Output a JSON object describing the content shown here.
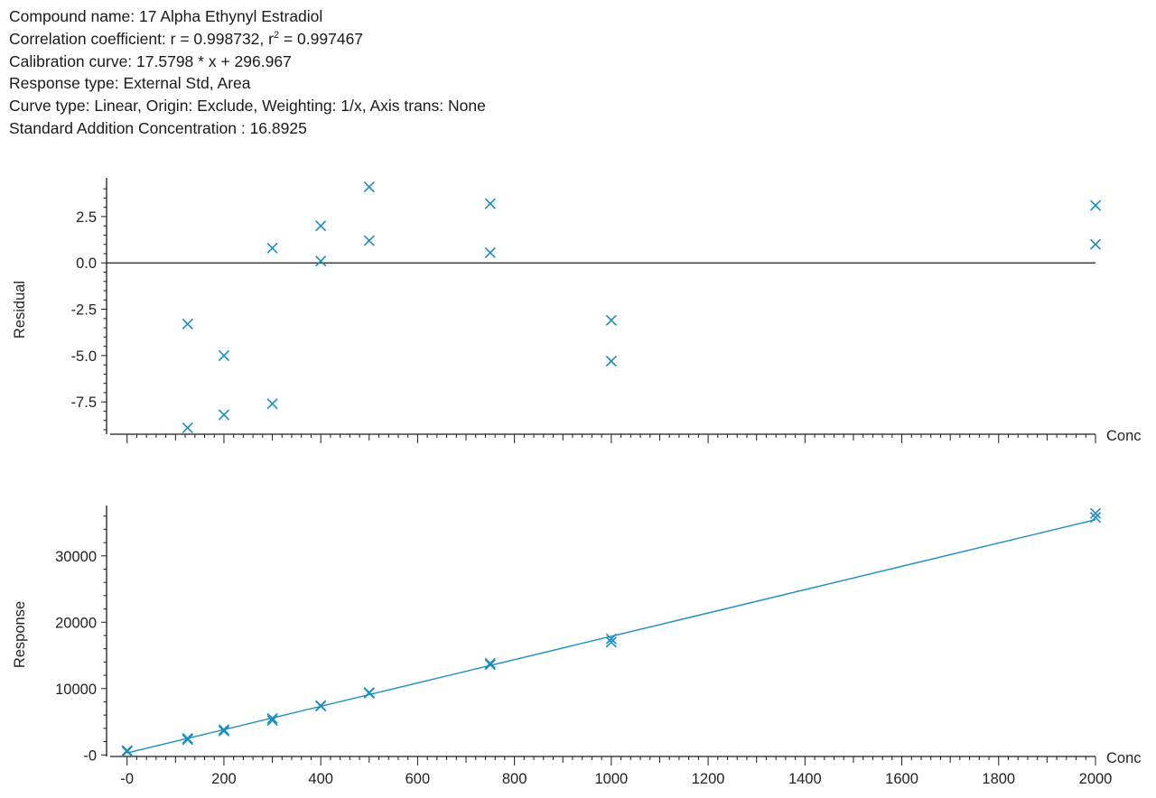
{
  "header": {
    "compound_name": "Compound name: 17 Alpha Ethynyl Estradiol",
    "correlation_prefix": "Correlation coefficient: r = 0.998732, r",
    "correlation_sup": "2",
    "correlation_suffix": " = 0.997467",
    "calibration_curve": "Calibration curve: 17.5798 * x + 296.967",
    "response_type": "Response type: External Std, Area",
    "curve_type": "Curve type: Linear, Origin: Exclude, Weighting: 1/x, Axis trans: None",
    "std_addition": "Standard Addition Concentration : 16.8925"
  },
  "colors": {
    "marker": "#1a8cc0",
    "line": "#1a8cc0",
    "axis": "#1a1a1a"
  },
  "chart_data": [
    {
      "type": "scatter",
      "title": "",
      "ylabel": "Residual",
      "xlabel": "Conc",
      "xlim": [
        -20,
        2000
      ],
      "ylim": [
        -9,
        4.2
      ],
      "yticks": [
        2.5,
        0.0,
        -2.5,
        -5.0,
        -7.5
      ],
      "ytick_labels": [
        "2.5",
        "0.0",
        "-2.5",
        "-5.0",
        "-7.5"
      ],
      "zero_line": true,
      "points": [
        {
          "x": 125,
          "y": -3.3
        },
        {
          "x": 125,
          "y": -8.9
        },
        {
          "x": 200,
          "y": -5.0
        },
        {
          "x": 200,
          "y": -8.2
        },
        {
          "x": 300,
          "y": 0.8
        },
        {
          "x": 300,
          "y": -7.6
        },
        {
          "x": 400,
          "y": 2.0
        },
        {
          "x": 400,
          "y": 0.1
        },
        {
          "x": 500,
          "y": 4.1
        },
        {
          "x": 500,
          "y": 1.2
        },
        {
          "x": 750,
          "y": 3.2
        },
        {
          "x": 750,
          "y": 0.55
        },
        {
          "x": 1000,
          "y": -3.1
        },
        {
          "x": 1000,
          "y": -5.3
        },
        {
          "x": 2000,
          "y": 3.1
        },
        {
          "x": 2000,
          "y": 1.0
        }
      ]
    },
    {
      "type": "scatter",
      "title": "",
      "ylabel": "Response",
      "xlabel": "Conc",
      "xlim": [
        -20,
        2000
      ],
      "ylim": [
        -100,
        36500
      ],
      "yticks": [
        30000,
        20000,
        10000,
        0
      ],
      "ytick_labels": [
        "30000",
        "20000",
        "10000",
        "-0"
      ],
      "xticks": [
        0,
        200,
        400,
        600,
        800,
        1000,
        1200,
        1400,
        1600,
        1800,
        2000
      ],
      "xtick_labels": [
        "-0",
        "200",
        "400",
        "600",
        "800",
        "1000",
        "1200",
        "1400",
        "1600",
        "1800",
        "2000"
      ],
      "fit_line": {
        "slope": 17.5798,
        "intercept": 296.967,
        "x_range": [
          0,
          2000
        ]
      },
      "points": [
        {
          "x": 0,
          "y": 650
        },
        {
          "x": 0,
          "y": 500
        },
        {
          "x": 125,
          "y": 2500
        },
        {
          "x": 125,
          "y": 2300
        },
        {
          "x": 200,
          "y": 3800
        },
        {
          "x": 200,
          "y": 3600
        },
        {
          "x": 300,
          "y": 5500
        },
        {
          "x": 300,
          "y": 5200
        },
        {
          "x": 400,
          "y": 7450
        },
        {
          "x": 400,
          "y": 7350
        },
        {
          "x": 500,
          "y": 9400
        },
        {
          "x": 500,
          "y": 9300
        },
        {
          "x": 750,
          "y": 13800
        },
        {
          "x": 750,
          "y": 13600
        },
        {
          "x": 1000,
          "y": 17500
        },
        {
          "x": 1000,
          "y": 17000
        },
        {
          "x": 2000,
          "y": 36400
        },
        {
          "x": 2000,
          "y": 35800
        }
      ]
    }
  ]
}
